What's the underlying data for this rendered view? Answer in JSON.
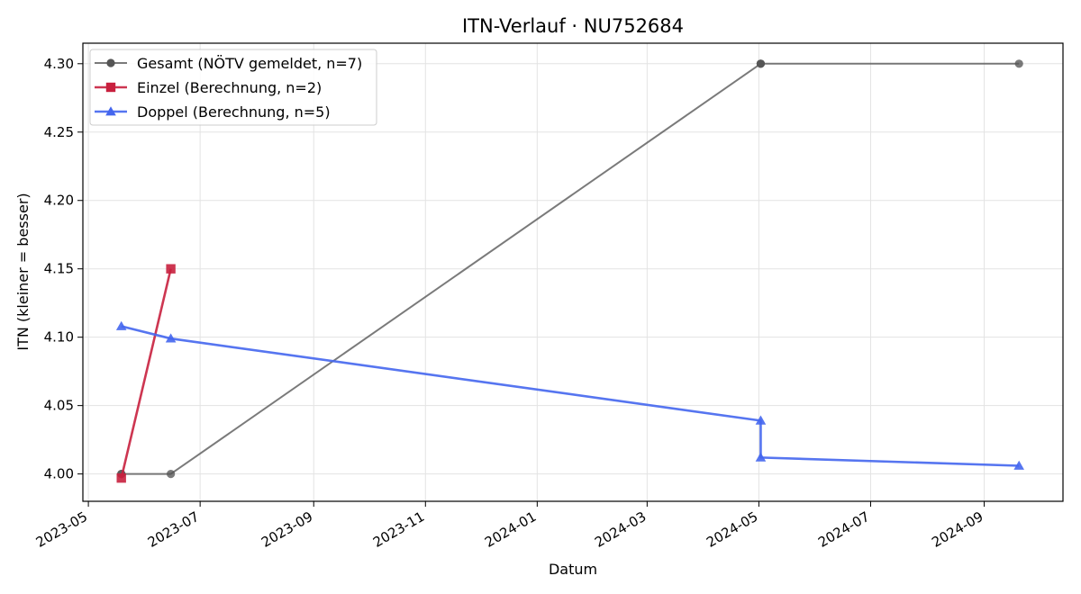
{
  "chart_data": {
    "type": "line",
    "title": "ITN-Verlauf · NU752684",
    "xlabel": "Datum",
    "ylabel": "ITN  (kleiner = besser)",
    "x_type": "date",
    "xlim": [
      "2023-04-28",
      "2024-10-14"
    ],
    "ylim": [
      3.98,
      4.315
    ],
    "x_ticks": [
      "2023-05-01",
      "2023-07-01",
      "2023-09-01",
      "2023-11-01",
      "2024-01-01",
      "2024-03-01",
      "2024-05-01",
      "2024-07-01",
      "2024-09-01"
    ],
    "x_tick_labels": [
      "2023-05",
      "2023-07",
      "2023-09",
      "2023-11",
      "2024-01",
      "2024-03",
      "2024-05",
      "2024-07",
      "2024-09"
    ],
    "y_ticks": [
      4.0,
      4.05,
      4.1,
      4.15,
      4.2,
      4.25,
      4.3
    ],
    "y_tick_labels": [
      "4.00",
      "4.05",
      "4.10",
      "4.15",
      "4.20",
      "4.25",
      "4.30"
    ],
    "grid": true,
    "legend_position": "top-left",
    "series": [
      {
        "name": "Gesamt (NÖTV gemeldet, n=7)",
        "color": "#555555",
        "marker": "circle",
        "x": [
          "2023-05-19",
          "2023-05-19",
          "2023-06-15",
          "2024-05-02",
          "2024-05-02",
          "2024-05-02",
          "2024-09-20"
        ],
        "y": [
          4.0,
          4.0,
          4.0,
          4.3,
          4.3,
          4.3,
          4.3
        ]
      },
      {
        "name": "Einzel (Berechnung, n=2)",
        "color": "#c8203e",
        "marker": "square",
        "x": [
          "2023-05-19",
          "2023-06-15"
        ],
        "y": [
          3.997,
          4.15
        ]
      },
      {
        "name": "Doppel (Berechnung, n=5)",
        "color": "#4466ee",
        "marker": "triangle",
        "x": [
          "2023-05-19",
          "2023-06-15",
          "2024-05-02",
          "2024-05-02",
          "2024-09-20"
        ],
        "y": [
          4.108,
          4.099,
          4.039,
          4.012,
          4.006
        ]
      }
    ]
  }
}
